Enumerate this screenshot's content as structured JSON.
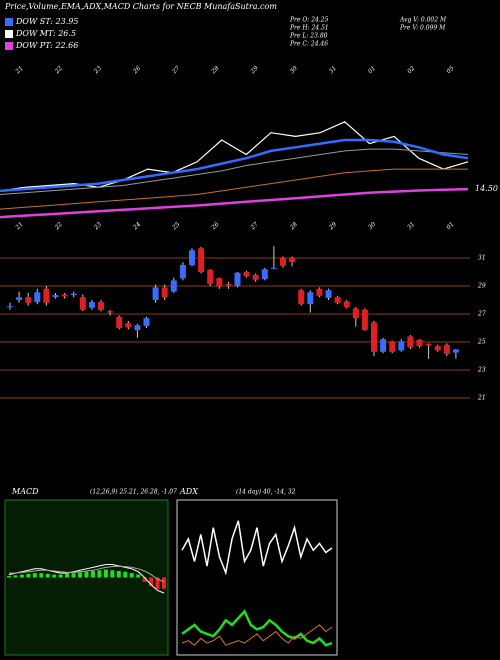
{
  "header": {
    "title": "Price,Volume,EMA,ADX,MACD Charts for NECB MunafaSutra.com",
    "legend": [
      {
        "text": "DOW ST: 23.95",
        "color": "#3a6cff"
      },
      {
        "text": "DOW MT: 26.5",
        "color": "#ffffff"
      },
      {
        "text": "DOW PT: 22.66",
        "color": "#e040e0"
      }
    ],
    "info_left": [
      "Pre  O: 24.25",
      "Pre  H: 24.51",
      "Pre  L: 23.80",
      "Pre  C: 24.46"
    ],
    "info_right": [
      "Avg V: 0.002  M",
      "Pre  V: 0.099  M"
    ]
  },
  "chart_data": [
    {
      "type": "line",
      "ylim": [
        6,
        50
      ],
      "yticks": [
        {
          "value": 14.5,
          "label": "14.50"
        }
      ],
      "date_labels": [
        "21",
        "22",
        "23",
        "26",
        "27",
        "28",
        "29",
        "30",
        "31",
        "01",
        "02",
        "05"
      ],
      "series": [
        {
          "color": "#ffffff",
          "width": 1.2,
          "values": [
            14,
            15,
            15.5,
            16,
            15,
            17,
            20,
            19,
            22,
            28,
            24,
            30,
            29,
            30,
            33,
            27,
            29,
            23,
            20,
            22
          ]
        },
        {
          "color": "#9a9a9a",
          "width": 1,
          "values": [
            13,
            13.5,
            14,
            14.5,
            15,
            15.5,
            16.5,
            17.5,
            18.5,
            19.5,
            21,
            22,
            23,
            24,
            25,
            25.5,
            25.5,
            25,
            24.5,
            24
          ]
        },
        {
          "color": "#2f6cff",
          "width": 2.5,
          "values": [
            14,
            14.5,
            15,
            15.5,
            16,
            17,
            18,
            19,
            20,
            21.5,
            23,
            25,
            26,
            27,
            28,
            28,
            27.5,
            26,
            24,
            23
          ]
        },
        {
          "color": "#c8702a",
          "width": 1,
          "values": [
            9,
            9.5,
            10,
            10.5,
            11,
            11.5,
            12,
            12.5,
            13,
            14,
            15,
            16,
            17,
            18,
            19,
            19.5,
            20,
            20,
            20,
            20
          ]
        },
        {
          "color": "#e040e0",
          "width": 2.5,
          "values": [
            6.8,
            7.2,
            7.6,
            8,
            8.4,
            8.8,
            9.2,
            9.6,
            10,
            10.5,
            11,
            11.5,
            12,
            12.5,
            13,
            13.5,
            13.8,
            14.1,
            14.3,
            14.5
          ]
        }
      ]
    },
    {
      "type": "candlestick",
      "ylim": [
        20.5,
        32.5
      ],
      "yticks": [
        21,
        23,
        25,
        27,
        29,
        31
      ],
      "date_labels": [
        "21",
        "22",
        "23",
        "24",
        "25",
        "26",
        "27",
        "28",
        "29",
        "30",
        "31",
        "01"
      ],
      "up_color": "#3a6cff",
      "down_color": "#e02020",
      "grid_color": "#8b3a1a",
      "open": [
        27.5,
        28.0,
        28.2,
        27.85,
        28.8,
        28.2,
        28.4,
        28.35,
        28.2,
        27.45,
        27.85,
        27.2,
        26.8,
        26.35,
        25.85,
        26.15,
        28.0,
        28.9,
        28.6,
        29.55,
        30.5,
        31.7,
        30.15,
        29.55,
        29.15,
        29.0,
        30.0,
        29.8,
        29.5,
        30.25,
        31.0,
        31.0,
        28.7,
        27.7,
        28.8,
        28.15,
        28.2,
        27.9,
        27.4,
        27.3,
        26.4,
        24.3,
        25.05,
        24.4,
        25.4,
        25.15,
        24.85,
        24.7,
        24.8,
        24.25
      ],
      "high": [
        27.8,
        28.6,
        28.5,
        28.8,
        29.0,
        28.5,
        28.5,
        28.6,
        28.4,
        28.0,
        28.0,
        27.3,
        26.9,
        26.5,
        26.3,
        26.8,
        29.1,
        29.1,
        29.6,
        30.7,
        31.7,
        31.8,
        30.2,
        29.6,
        29.3,
        30.0,
        30.1,
        29.9,
        30.3,
        31.85,
        31.1,
        31.1,
        28.8,
        28.7,
        28.9,
        28.8,
        28.3,
        28.0,
        27.5,
        27.4,
        26.5,
        25.3,
        25.1,
        25.2,
        25.5,
        25.2,
        24.9,
        24.8,
        24.9,
        24.51
      ],
      "low": [
        27.3,
        27.8,
        27.6,
        27.7,
        27.6,
        28.1,
        28.1,
        28.2,
        27.2,
        27.3,
        27.2,
        26.9,
        25.9,
        25.9,
        25.3,
        26.0,
        27.8,
        28.0,
        28.5,
        29.4,
        30.4,
        29.9,
        29.0,
        28.8,
        28.8,
        28.9,
        29.6,
        29.3,
        29.4,
        30.2,
        30.3,
        30.4,
        27.6,
        27.1,
        28.2,
        28.0,
        27.7,
        27.4,
        26.1,
        25.8,
        24.0,
        24.2,
        24.2,
        24.3,
        24.5,
        24.6,
        23.8,
        24.3,
        24.0,
        23.8
      ],
      "close": [
        27.55,
        28.2,
        27.8,
        28.55,
        27.8,
        28.35,
        28.25,
        28.45,
        27.3,
        27.85,
        27.3,
        27.1,
        26.0,
        26.05,
        26.2,
        26.7,
        28.9,
        28.2,
        29.4,
        30.5,
        31.55,
        30.0,
        29.15,
        28.95,
        29.05,
        29.95,
        29.7,
        29.45,
        30.2,
        30.3,
        30.45,
        30.7,
        27.7,
        28.55,
        28.3,
        28.7,
        27.8,
        27.5,
        26.7,
        25.85,
        24.3,
        25.2,
        24.3,
        25.05,
        24.6,
        24.7,
        24.75,
        24.4,
        24.15,
        24.46
      ]
    },
    {
      "type": "macd",
      "title": "MACD",
      "subtitle": "(12,26,9) 25.21, 26.28, -1.07",
      "ylim": [
        -5,
        5
      ],
      "hist_up": "#22dd22",
      "hist_down": "#ee2222",
      "series": [
        {
          "color": "#ffffff",
          "values": [
            0.2,
            0.3,
            0.4,
            0.5,
            0.6,
            0.6,
            0.5,
            0.4,
            0.3,
            0.3,
            0.4,
            0.5,
            0.6,
            0.7,
            0.8,
            0.9,
            0.9,
            0.8,
            0.7,
            0.6,
            0.4,
            0.0,
            -0.5,
            -0.9,
            -1.07
          ]
        },
        {
          "color": "#aaaaaa",
          "values": [
            0.3,
            0.3,
            0.35,
            0.4,
            0.45,
            0.5,
            0.5,
            0.45,
            0.4,
            0.35,
            0.35,
            0.4,
            0.45,
            0.5,
            0.6,
            0.7,
            0.75,
            0.78,
            0.75,
            0.7,
            0.6,
            0.45,
            0.2,
            -0.1,
            -0.3
          ]
        }
      ],
      "hist": [
        0.1,
        0.15,
        0.2,
        0.25,
        0.3,
        0.3,
        0.25,
        0.2,
        0.2,
        0.25,
        0.3,
        0.35,
        0.4,
        0.45,
        0.5,
        0.55,
        0.5,
        0.45,
        0.4,
        0.3,
        0.2,
        -0.3,
        -0.6,
        -0.8,
        -0.77
      ]
    },
    {
      "type": "adx",
      "title": "ADX",
      "subtitle": "(14 day) 40, -14, 32",
      "ylim": [
        0,
        65
      ],
      "series": [
        {
          "color": "#ffffff",
          "width": 1.5,
          "values": [
            45,
            50,
            40,
            52,
            38,
            55,
            42,
            35,
            50,
            58,
            40,
            45,
            55,
            38,
            48,
            52,
            40,
            47,
            55,
            42,
            50,
            45,
            48,
            44,
            46
          ]
        },
        {
          "color": "#22dd22",
          "width": 2.5,
          "values": [
            8,
            10,
            12,
            9,
            8,
            7,
            10,
            14,
            12,
            15,
            18,
            12,
            10,
            11,
            14,
            12,
            9,
            7,
            6,
            8,
            5,
            4,
            6,
            3,
            4
          ]
        },
        {
          "color": "#d87a20",
          "width": 1,
          "values": [
            4,
            5,
            3,
            6,
            4,
            5,
            7,
            3,
            4,
            5,
            4,
            6,
            8,
            5,
            7,
            9,
            6,
            4,
            7,
            6,
            8,
            10,
            12,
            9,
            11
          ]
        }
      ]
    }
  ]
}
